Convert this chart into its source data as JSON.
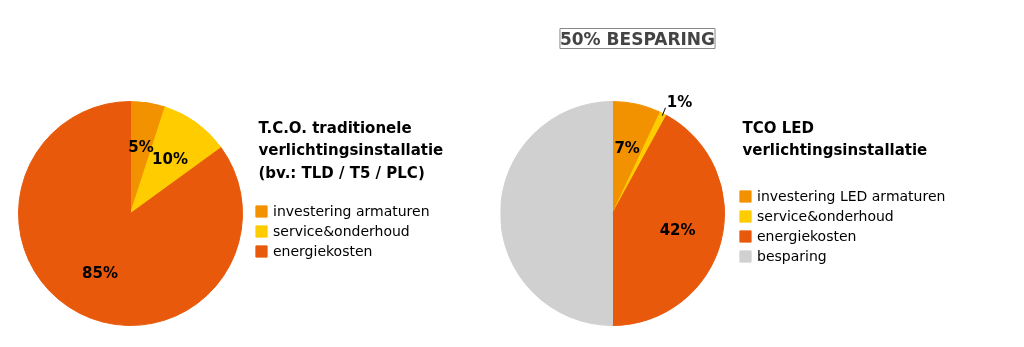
{
  "chart_data": [
    {
      "type": "pie",
      "title": "T.C.O. traditionele verlichtingsinstallatie (bv.: TLD / T5 / PLC)",
      "categories": [
        "investering armaturen",
        "service&onderhoud",
        "energiekosten"
      ],
      "values": [
        5,
        10,
        85
      ],
      "colors": [
        "#f39200",
        "#ffcc00",
        "#e8590c"
      ],
      "value_labels": [
        "5%",
        "10%",
        "85%"
      ],
      "legend": "right"
    },
    {
      "type": "pie",
      "title": "TCO LED verlichtingsinstallatie",
      "categories": [
        "investering LED armaturen",
        "service&onderhoud",
        "energiekosten",
        "besparing"
      ],
      "values": [
        7,
        1,
        42,
        50
      ],
      "colors": [
        "#f39200",
        "#ffcc00",
        "#e8590c",
        "#d0d0d0"
      ],
      "value_labels": [
        "7%",
        "1%",
        "42%",
        null
      ],
      "annotations": [
        {
          "text": "50% BESPARING",
          "x": "besparing"
        }
      ],
      "legend": "right"
    }
  ]
}
